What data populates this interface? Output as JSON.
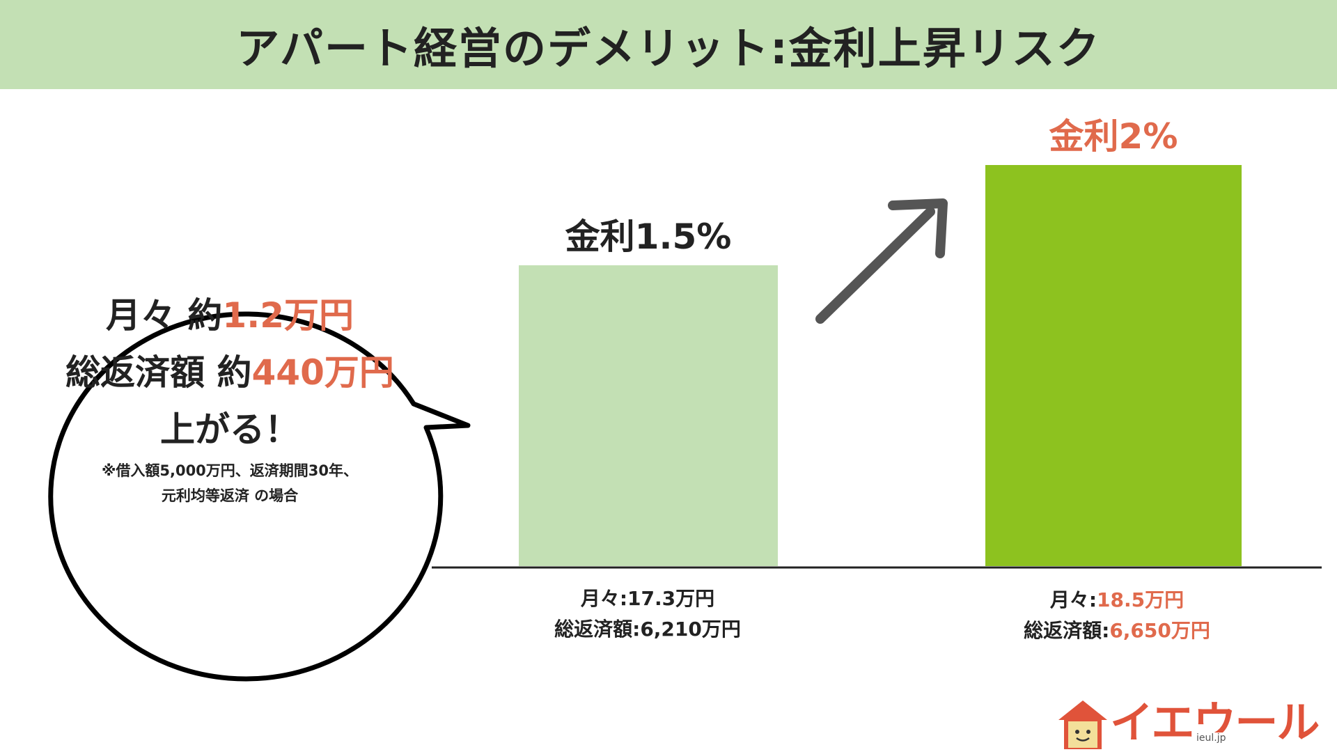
{
  "title": "アパート経営のデメリット:金利上昇リスク",
  "colors": {
    "title_bg": "#c3e0b4",
    "bar_low": "#c3e0b4",
    "bar_high": "#8dc21f",
    "highlight": "#e06a4c",
    "arrow": "#555555",
    "text": "#222222"
  },
  "chart_data": {
    "type": "bar",
    "categories": [
      "金利1.5%",
      "金利2%"
    ],
    "values": [
      1.5,
      2
    ],
    "unit": "%",
    "bar_labels": [
      "金利1.5%",
      "金利2%"
    ],
    "details": [
      {
        "monthly_label": "月々:",
        "monthly_value": "17.3万円",
        "total_label": "総返済額:",
        "total_value": "6,210万円"
      },
      {
        "monthly_label": "月々:",
        "monthly_value": "18.5万円",
        "total_label": "総返済額:",
        "total_value": "6,650万円"
      }
    ]
  },
  "bubble": {
    "line1_prefix": "月々 約",
    "line1_value": "1.2万円",
    "line2_prefix": "総返済額 約",
    "line2_value": "440万円",
    "line3": "上がる！",
    "note_line1": "※借入額5,000万円、返済期間30年、",
    "note_line2": "元利均等返済 の場合"
  },
  "logo": {
    "text": "イエウール",
    "domain": "ieul.jp",
    "icon": "house-icon"
  }
}
